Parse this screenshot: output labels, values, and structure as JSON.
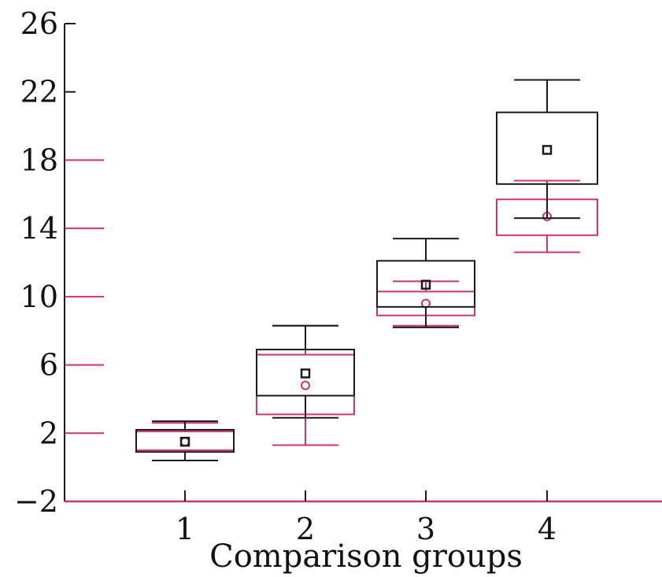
{
  "chart_data": {
    "type": "box",
    "title": "",
    "xlabel": "Comparison groups",
    "ylabel": "",
    "ylim": [
      -2,
      26
    ],
    "yticks": [
      -2,
      2,
      6,
      10,
      14,
      18,
      22,
      26
    ],
    "ytick_labels": [
      "−2",
      "2",
      "6",
      "10",
      "14",
      "18",
      "22",
      "26"
    ],
    "categories": [
      "1",
      "2",
      "3",
      "4"
    ],
    "grid": false,
    "legend": "none",
    "series": [
      {
        "color": "#1a1a1a",
        "mean_marker": "square",
        "boxes": [
          {
            "min": 0.4,
            "q1": 0.9,
            "q3": 2.2,
            "max": 2.7,
            "mean": 1.5
          },
          {
            "min": 2.9,
            "q1": 4.2,
            "q3": 6.9,
            "max": 8.3,
            "mean": 5.5
          },
          {
            "min": 8.2,
            "q1": 9.4,
            "q3": 12.1,
            "max": 13.4,
            "mean": 10.7
          },
          {
            "min": 14.6,
            "q1": 16.6,
            "q3": 20.8,
            "max": 22.7,
            "mean": 18.6
          }
        ]
      },
      {
        "color": "#cc3377",
        "mean_marker": "circle",
        "boxes": [
          {
            "min": 0.4,
            "q1": 1.0,
            "q3": 2.1,
            "max": 2.6,
            "mean": 1.5
          },
          {
            "min": 1.3,
            "q1": 3.1,
            "q3": 6.6,
            "max": 8.3,
            "mean": 4.8
          },
          {
            "min": 8.3,
            "q1": 8.9,
            "q3": 10.3,
            "max": 10.9,
            "mean": 9.6
          },
          {
            "min": 12.6,
            "q1": 13.6,
            "q3": 15.7,
            "max": 16.8,
            "mean": 14.7
          }
        ]
      }
    ]
  }
}
